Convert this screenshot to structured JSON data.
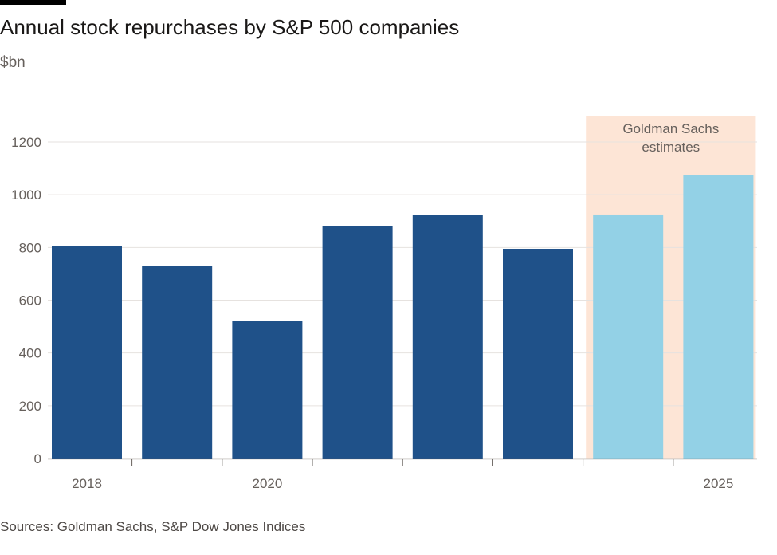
{
  "header": {
    "title": "Annual stock repurchases by S&P 500 companies",
    "subtitle": "$bn"
  },
  "footer": {
    "source": "Sources: Goldman Sachs, S&P Dow Jones Indices"
  },
  "colors": {
    "actual": "#1f5189",
    "estimate": "#93d1e6",
    "estimate_band": "#fde5d6",
    "grid": "#e6e2df",
    "axis": "#66605c",
    "tick_text": "#66605c",
    "annotation_text": "#66605c"
  },
  "chart_data": {
    "type": "bar",
    "title": "Annual stock repurchases by S&P 500 companies",
    "ylabel": "$bn",
    "xlabel": "",
    "categories": [
      "2018",
      "2019",
      "2020",
      "2021",
      "2022",
      "2023",
      "2024",
      "2025"
    ],
    "x_tick_labels": [
      {
        "category": "2018",
        "label": "2018"
      },
      {
        "category": "2020",
        "label": "2020"
      },
      {
        "category": "2025",
        "label": "2025"
      }
    ],
    "series": [
      {
        "values": [
          806,
          729,
          520,
          882,
          923,
          795,
          925,
          1075
        ],
        "estimated": [
          false,
          false,
          false,
          false,
          false,
          false,
          true,
          true
        ]
      }
    ],
    "ylim": [
      0,
      1200
    ],
    "yticks": [
      0,
      200,
      400,
      600,
      800,
      1000,
      1200
    ],
    "grid": true,
    "annotation": {
      "lines": [
        "Goldman Sachs",
        "estimates"
      ],
      "categories": [
        "2024",
        "2025"
      ]
    }
  }
}
